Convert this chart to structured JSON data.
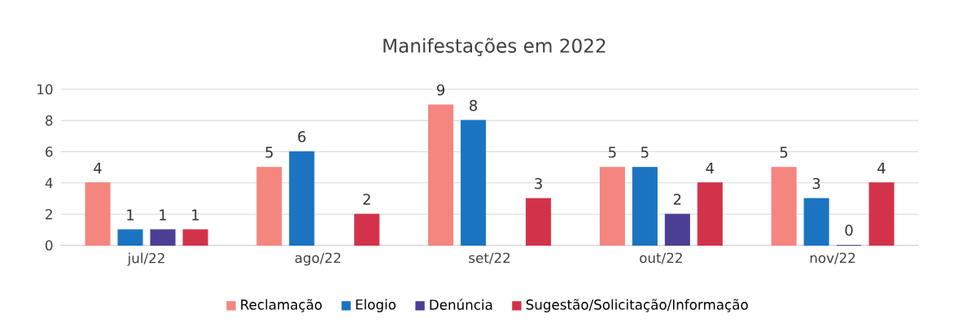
{
  "chart_data": {
    "type": "bar",
    "title": "Manifestações em 2022",
    "categories": [
      "jul/22",
      "ago/22",
      "set/22",
      "out/22",
      "nov/22"
    ],
    "series": [
      {
        "name": "Reclamação",
        "color": "#f4857f",
        "values": [
          4,
          5,
          9,
          5,
          5
        ]
      },
      {
        "name": "Elogio",
        "color": "#1b74c2",
        "values": [
          1,
          6,
          8,
          5,
          3
        ]
      },
      {
        "name": "Denúncia",
        "color": "#4b3f94",
        "values": [
          1,
          null,
          null,
          2,
          0
        ]
      },
      {
        "name": "Sugestão/Solicitação/Informação",
        "color": "#d2334b",
        "values": [
          1,
          2,
          3,
          4,
          4
        ]
      }
    ],
    "ylim": [
      0,
      10
    ],
    "yticks": [
      0,
      2,
      4,
      6,
      8,
      10
    ],
    "grid": "y",
    "legend": "bottom",
    "data_labels": true
  }
}
